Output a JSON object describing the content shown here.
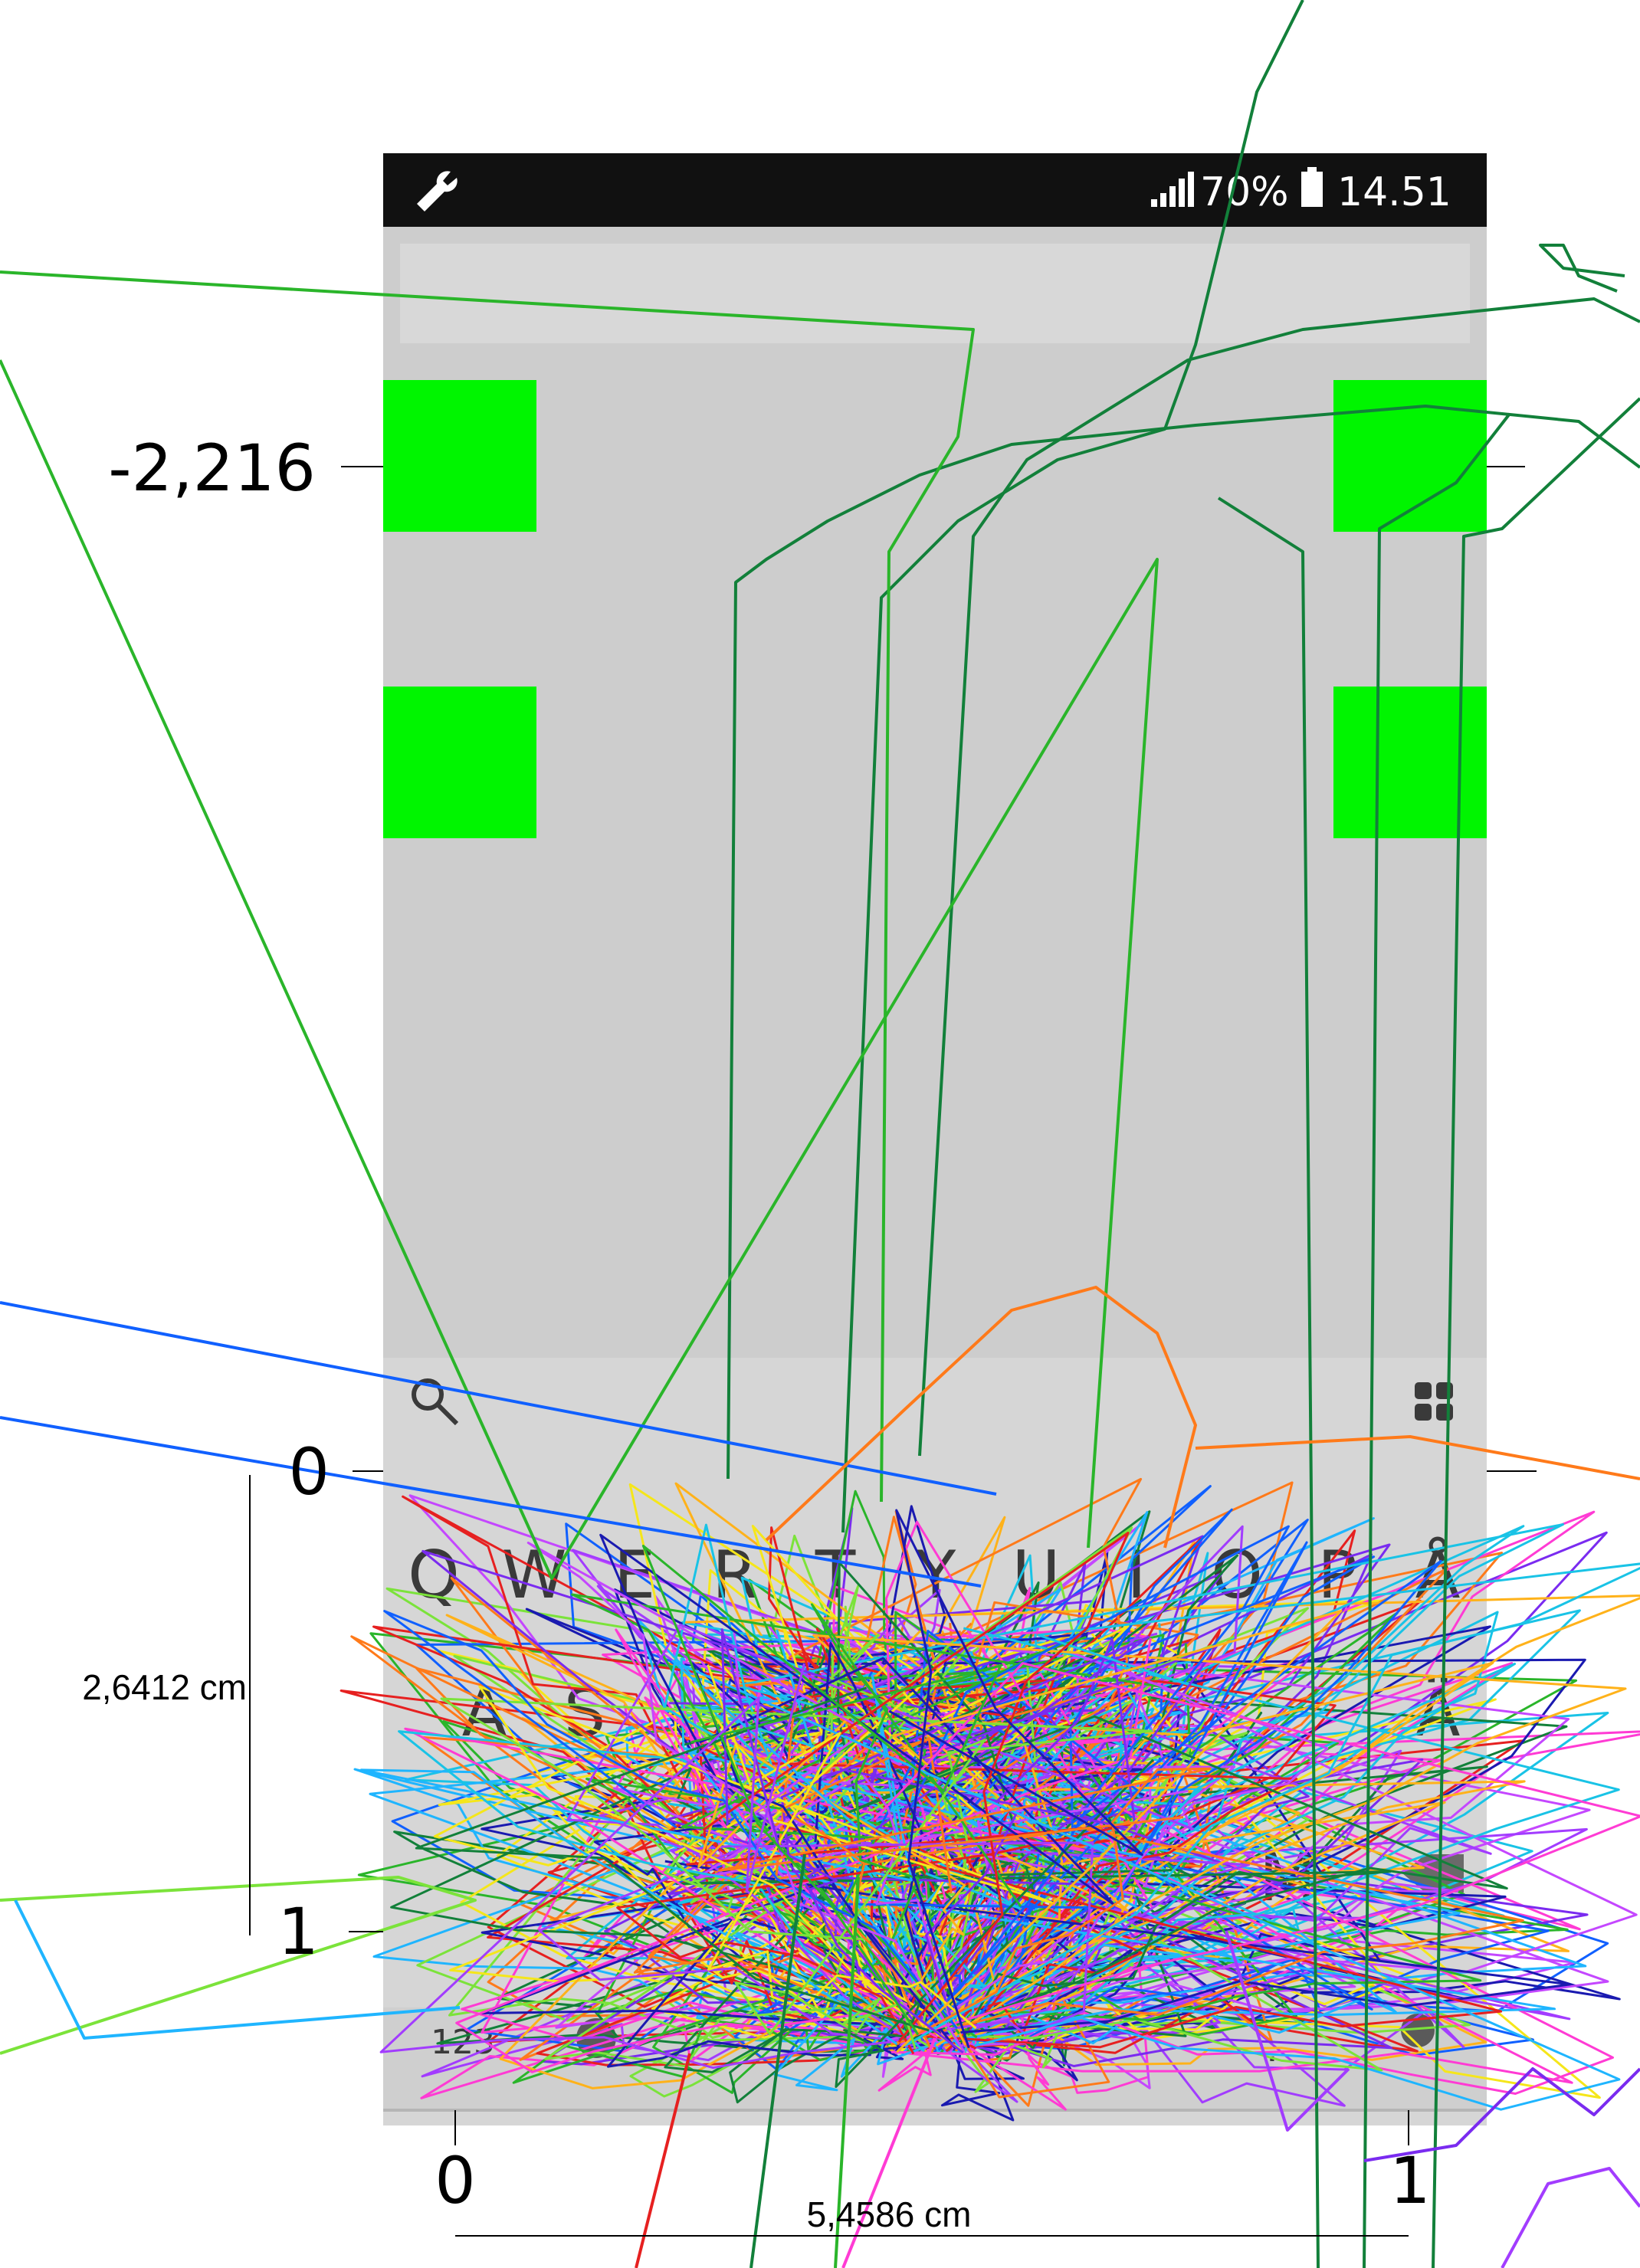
{
  "status_bar": {
    "left_icon": "wrench-icon",
    "signal_icon": "signal-bars-icon",
    "battery_percent": "70%",
    "battery_icon": "battery-icon",
    "time": "14.51"
  },
  "keyboard": {
    "search_icon": "search-icon",
    "menu_icon": "grid-menu-icon",
    "row1": [
      "Q",
      "W",
      "E",
      "R",
      "T",
      "Y",
      "U",
      "I",
      "O",
      "P",
      "Å"
    ],
    "row2_visible": [
      "A",
      "S",
      "Ä"
    ],
    "row3_visible": [
      "M"
    ],
    "bottom_visible": [
      "123",
      "."
    ]
  },
  "chart_data": {
    "type": "line",
    "title": "",
    "y_axis": {
      "ticks": [
        "-2,216",
        "0",
        "1"
      ],
      "dimension_label": "2,6412 cm"
    },
    "x_axis": {
      "ticks": [
        "0",
        "1"
      ],
      "dimension_label": "5,4586 cm"
    },
    "targets": {
      "count": 4,
      "color": "#00f500"
    },
    "focus_point": {
      "x": 0.5,
      "y": 1.2
    },
    "series_colors": [
      "#ff3bd4",
      "#a23cff",
      "#7a2bf0",
      "#ff7a1a",
      "#ffb21a",
      "#e62020",
      "#1fb5ff",
      "#1060ff",
      "#1a1ab0",
      "#2ab52a",
      "#12803a",
      "#7be33a",
      "#f5e61a",
      "#19c3e6",
      "#c447ff"
    ]
  }
}
